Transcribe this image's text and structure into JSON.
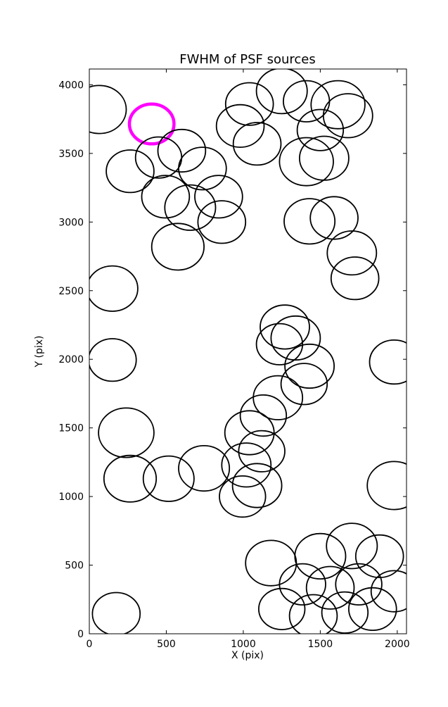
{
  "chart_data": {
    "type": "scatter",
    "title": "FWHM of PSF sources",
    "xlabel": "X (pix)",
    "ylabel": "Y (pix)",
    "xlim": [
      0,
      2060
    ],
    "ylim": [
      0,
      4115
    ],
    "xticks": [
      0,
      500,
      1000,
      1500,
      2000
    ],
    "yticks": [
      0,
      500,
      1000,
      1500,
      2000,
      2500,
      3000,
      3500,
      4000
    ],
    "grid": false,
    "legend": "none",
    "marker": "circle-outline",
    "colors": {
      "source": "#000000",
      "highlight": "#ff00ff",
      "background": "#ffffff"
    },
    "sources": [
      {
        "x": 65,
        "y": 3820,
        "r": 175
      },
      {
        "x": 405,
        "y": 3715,
        "r": 145,
        "highlight": true
      },
      {
        "x": 265,
        "y": 3370,
        "r": 155
      },
      {
        "x": 450,
        "y": 3470,
        "r": 150
      },
      {
        "x": 600,
        "y": 3520,
        "r": 155
      },
      {
        "x": 735,
        "y": 3390,
        "r": 155
      },
      {
        "x": 495,
        "y": 3185,
        "r": 155
      },
      {
        "x": 655,
        "y": 3105,
        "r": 165
      },
      {
        "x": 840,
        "y": 3185,
        "r": 155
      },
      {
        "x": 575,
        "y": 2820,
        "r": 170
      },
      {
        "x": 860,
        "y": 3000,
        "r": 155
      },
      {
        "x": 980,
        "y": 3700,
        "r": 155
      },
      {
        "x": 1040,
        "y": 3860,
        "r": 155
      },
      {
        "x": 1250,
        "y": 3955,
        "r": 165
      },
      {
        "x": 1090,
        "y": 3570,
        "r": 155
      },
      {
        "x": 1410,
        "y": 3880,
        "r": 150
      },
      {
        "x": 1615,
        "y": 3855,
        "r": 175
      },
      {
        "x": 1680,
        "y": 3775,
        "r": 160
      },
      {
        "x": 1500,
        "y": 3670,
        "r": 150
      },
      {
        "x": 1410,
        "y": 3440,
        "r": 175
      },
      {
        "x": 1525,
        "y": 3465,
        "r": 160
      },
      {
        "x": 1430,
        "y": 3005,
        "r": 165
      },
      {
        "x": 1590,
        "y": 3030,
        "r": 155
      },
      {
        "x": 1705,
        "y": 2775,
        "r": 160
      },
      {
        "x": 1725,
        "y": 2590,
        "r": 155
      },
      {
        "x": 150,
        "y": 2515,
        "r": 165
      },
      {
        "x": 150,
        "y": 1995,
        "r": 155
      },
      {
        "x": 1980,
        "y": 1980,
        "r": 160
      },
      {
        "x": 1270,
        "y": 2235,
        "r": 160
      },
      {
        "x": 1340,
        "y": 2155,
        "r": 160
      },
      {
        "x": 1235,
        "y": 2110,
        "r": 150
      },
      {
        "x": 1430,
        "y": 1950,
        "r": 160
      },
      {
        "x": 1395,
        "y": 1820,
        "r": 150
      },
      {
        "x": 1225,
        "y": 1720,
        "r": 160
      },
      {
        "x": 1130,
        "y": 1590,
        "r": 150
      },
      {
        "x": 1040,
        "y": 1465,
        "r": 160
      },
      {
        "x": 1120,
        "y": 1330,
        "r": 150
      },
      {
        "x": 1020,
        "y": 1230,
        "r": 160
      },
      {
        "x": 1090,
        "y": 1080,
        "r": 160
      },
      {
        "x": 995,
        "y": 1000,
        "r": 150
      },
      {
        "x": 240,
        "y": 1465,
        "r": 180
      },
      {
        "x": 265,
        "y": 1130,
        "r": 170
      },
      {
        "x": 515,
        "y": 1130,
        "r": 165
      },
      {
        "x": 745,
        "y": 1205,
        "r": 165
      },
      {
        "x": 175,
        "y": 145,
        "r": 155
      },
      {
        "x": 1180,
        "y": 515,
        "r": 165
      },
      {
        "x": 1500,
        "y": 565,
        "r": 165
      },
      {
        "x": 1705,
        "y": 640,
        "r": 165
      },
      {
        "x": 1885,
        "y": 565,
        "r": 155
      },
      {
        "x": 1385,
        "y": 360,
        "r": 150
      },
      {
        "x": 1565,
        "y": 335,
        "r": 155
      },
      {
        "x": 1750,
        "y": 360,
        "r": 150
      },
      {
        "x": 1250,
        "y": 180,
        "r": 150
      },
      {
        "x": 1455,
        "y": 130,
        "r": 155
      },
      {
        "x": 1660,
        "y": 155,
        "r": 150
      },
      {
        "x": 1840,
        "y": 180,
        "r": 155
      },
      {
        "x": 1980,
        "y": 310,
        "r": 150
      },
      {
        "x": 1980,
        "y": 1080,
        "r": 175
      }
    ]
  }
}
